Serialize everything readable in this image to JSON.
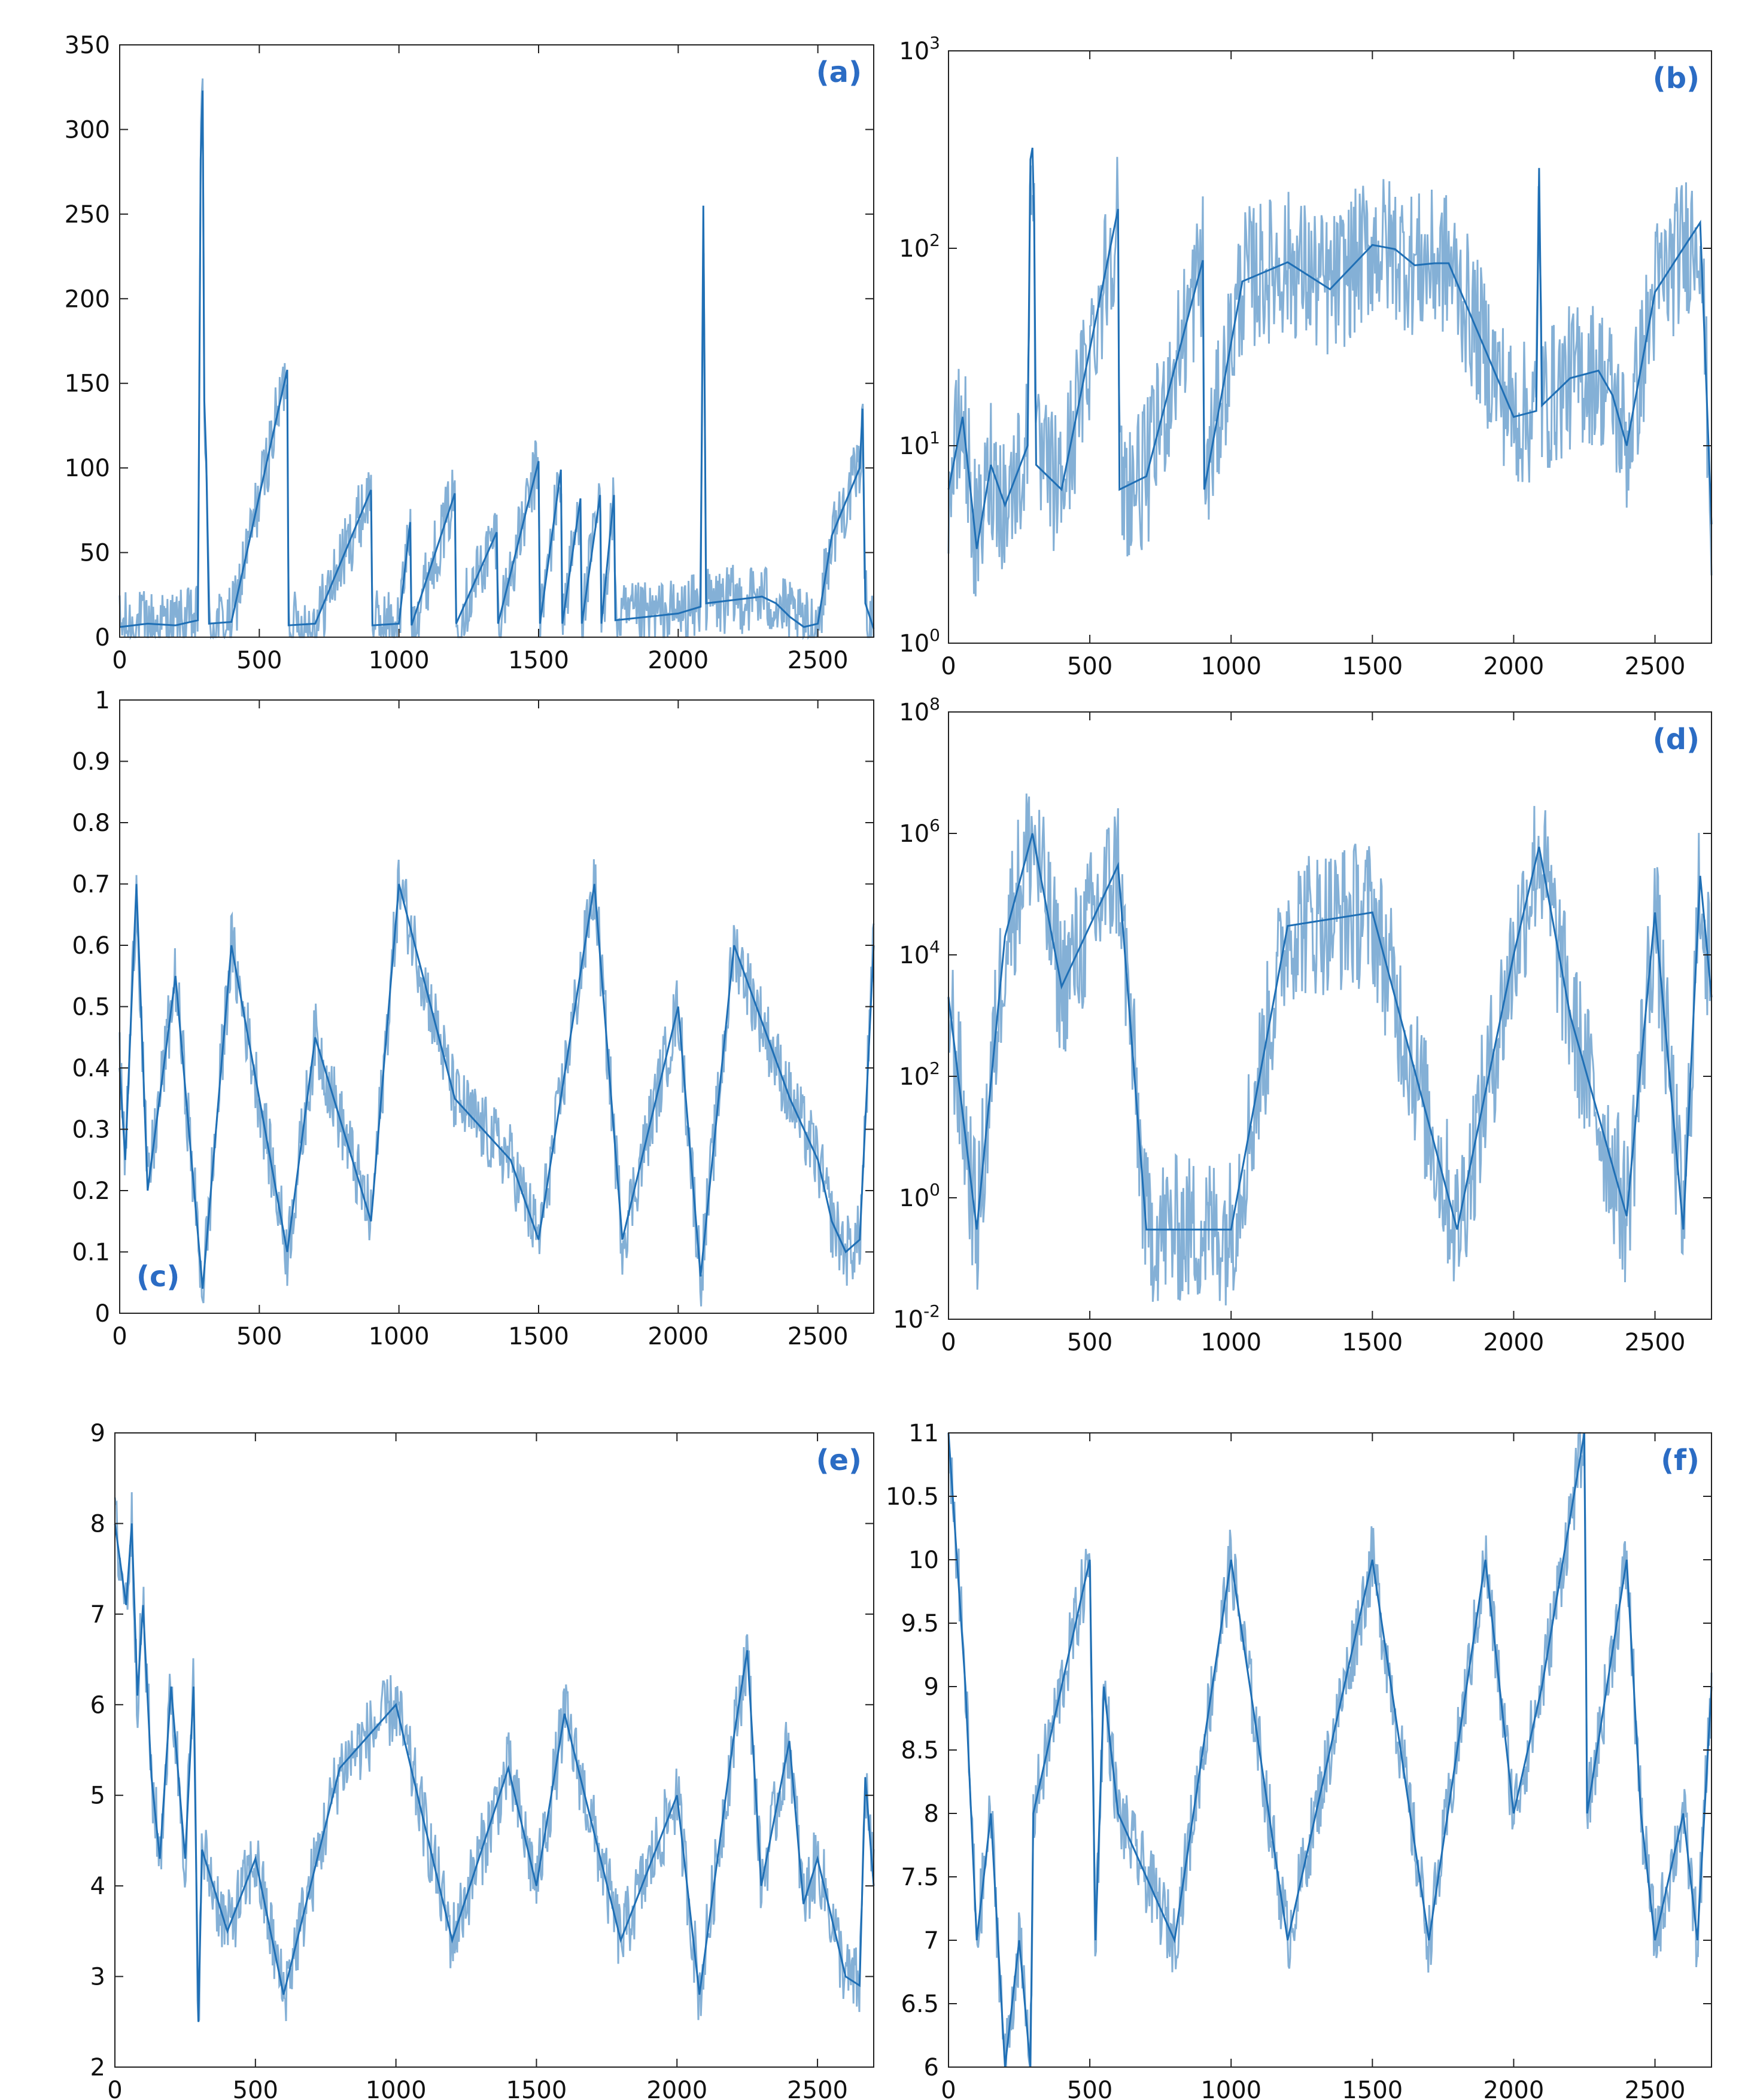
{
  "colors": {
    "series": "#1f6fb5",
    "axis": "#222222",
    "label": "#2b6cc4"
  },
  "chart_data": [
    {
      "id": "a",
      "type": "line",
      "panel_label": "(a)",
      "title": "",
      "xlabel": "",
      "ylabel": "",
      "xlim": [
        0,
        2700
      ],
      "ylim": [
        0,
        350
      ],
      "yscale": "linear",
      "xticks": [
        0,
        500,
        1000,
        1500,
        2000,
        2500
      ],
      "xtick_labels": [
        "0",
        "500",
        "1000",
        "1500",
        "2000",
        "2500"
      ],
      "yticks": [
        0,
        50,
        100,
        150,
        200,
        250,
        300,
        350
      ],
      "ytick_labels": [
        "0",
        "50",
        "100",
        "150",
        "200",
        "250",
        "300",
        "350"
      ],
      "grid": false,
      "legend": null,
      "series": [
        {
          "name": "",
          "x": [
            0,
            100,
            200,
            280,
            290,
            297,
            303,
            310,
            320,
            400,
            600,
            605,
            700,
            900,
            905,
            1000,
            1040,
            1045,
            1200,
            1205,
            1350,
            1355,
            1500,
            1505,
            1580,
            1585,
            1650,
            1655,
            1720,
            1725,
            1770,
            1775,
            2000,
            2080,
            2090,
            2100,
            2200,
            2300,
            2350,
            2400,
            2450,
            2500,
            2550,
            2600,
            2650,
            2660,
            2670,
            2700
          ],
          "y": [
            6,
            8,
            7,
            10,
            282,
            323,
            140,
            105,
            8,
            9,
            158,
            7,
            8,
            87,
            7,
            8,
            68,
            7,
            85,
            8,
            62,
            8,
            104,
            8,
            99,
            8,
            82,
            8,
            84,
            8,
            84,
            10,
            14,
            18,
            255,
            20,
            22,
            24,
            20,
            12,
            6,
            8,
            60,
            80,
            100,
            135,
            20,
            5
          ]
        }
      ]
    },
    {
      "id": "b",
      "type": "line",
      "panel_label": "(b)",
      "title": "",
      "xlabel": "",
      "ylabel": "",
      "xlim": [
        0,
        2700
      ],
      "ylim": [
        1,
        1000
      ],
      "yscale": "log",
      "xticks": [
        0,
        500,
        1000,
        1500,
        2000,
        2500
      ],
      "xtick_labels": [
        "0",
        "500",
        "1000",
        "1500",
        "2000",
        "2500"
      ],
      "yticks": [
        1,
        10,
        100,
        1000
      ],
      "ytick_labels": [
        {
          "base": "10",
          "exp": "0"
        },
        {
          "base": "10",
          "exp": "1"
        },
        {
          "base": "10",
          "exp": "2"
        },
        {
          "base": "10",
          "exp": "3"
        }
      ],
      "grid": false,
      "legend": null,
      "series": [
        {
          "name": "",
          "x": [
            0,
            50,
            100,
            150,
            200,
            280,
            290,
            297,
            303,
            310,
            400,
            600,
            605,
            700,
            900,
            905,
            1040,
            1200,
            1350,
            1500,
            1580,
            1650,
            1720,
            1770,
            2000,
            2080,
            2090,
            2100,
            2200,
            2300,
            2350,
            2400,
            2500,
            2600,
            2660,
            2700
          ],
          "y": [
            6,
            14,
            3,
            8,
            5,
            10,
            282,
            323,
            140,
            8,
            6,
            158,
            6,
            7,
            87,
            6,
            68,
            85,
            62,
            104,
            99,
            82,
            84,
            84,
            14,
            15,
            255,
            16,
            22,
            24,
            18,
            10,
            60,
            100,
            135,
            4
          ]
        }
      ]
    },
    {
      "id": "c",
      "type": "line",
      "panel_label": "(c)",
      "title": "",
      "xlabel": "",
      "ylabel": "",
      "xlim": [
        0,
        2700
      ],
      "ylim": [
        0,
        1
      ],
      "yscale": "linear",
      "xticks": [
        0,
        500,
        1000,
        1500,
        2000,
        2500
      ],
      "xtick_labels": [
        "0",
        "500",
        "1000",
        "1500",
        "2000",
        "2500"
      ],
      "yticks": [
        0,
        0.1,
        0.2,
        0.3,
        0.4,
        0.5,
        0.6,
        0.7,
        0.8,
        0.9,
        1
      ],
      "ytick_labels": [
        "0",
        "0.1",
        "0.2",
        "0.3",
        "0.4",
        "0.5",
        "0.6",
        "0.7",
        "0.8",
        "0.9",
        "1"
      ],
      "grid": false,
      "legend": null,
      "series": [
        {
          "name": "",
          "x": [
            0,
            20,
            60,
            100,
            200,
            297,
            310,
            400,
            600,
            700,
            900,
            1000,
            1200,
            1400,
            1500,
            1700,
            1800,
            2000,
            2080,
            2200,
            2400,
            2500,
            2550,
            2600,
            2650,
            2700
          ],
          "y": [
            0.4,
            0.25,
            0.7,
            0.2,
            0.55,
            0.04,
            0.11,
            0.6,
            0.1,
            0.45,
            0.15,
            0.7,
            0.35,
            0.25,
            0.12,
            0.7,
            0.12,
            0.5,
            0.06,
            0.6,
            0.35,
            0.25,
            0.15,
            0.1,
            0.12,
            0.6
          ]
        }
      ]
    },
    {
      "id": "d",
      "type": "line",
      "panel_label": "(d)",
      "title": "",
      "xlabel": "",
      "ylabel": "",
      "xlim": [
        0,
        2700
      ],
      "ylim": [
        0.01,
        100000000
      ],
      "yscale": "log",
      "xticks": [
        0,
        500,
        1000,
        1500,
        2000,
        2500
      ],
      "xtick_labels": [
        "0",
        "500",
        "1000",
        "1500",
        "2000",
        "2500"
      ],
      "yticks": [
        0.01,
        1,
        100,
        10000,
        1000000,
        100000000
      ],
      "ytick_labels": [
        {
          "base": "10",
          "exp": "-2"
        },
        {
          "base": "10",
          "exp": "0"
        },
        {
          "base": "10",
          "exp": "2"
        },
        {
          "base": "10",
          "exp": "4"
        },
        {
          "base": "10",
          "exp": "6"
        },
        {
          "base": "10",
          "exp": "8"
        }
      ],
      "grid": false,
      "legend": null,
      "series": [
        {
          "name": "",
          "x": [
            0,
            100,
            200,
            297,
            400,
            600,
            700,
            1000,
            1200,
            1500,
            1800,
            2000,
            2090,
            2200,
            2400,
            2500,
            2600,
            2660,
            2700
          ],
          "y": [
            2000,
            0.3,
            20000,
            1000000,
            3000,
            300000,
            0.3,
            0.3,
            30000,
            50000,
            0.3,
            10000,
            600000,
            1000,
            0.5,
            50000,
            0.3,
            200000,
            2000
          ]
        }
      ]
    },
    {
      "id": "e",
      "type": "line",
      "panel_label": "(e)",
      "title": "",
      "xlabel": "",
      "ylabel": "",
      "xlim": [
        0,
        2700
      ],
      "ylim": [
        2,
        9
      ],
      "yscale": "linear",
      "xticks": [
        0,
        500,
        1000,
        1500,
        2000,
        2500
      ],
      "xtick_labels": [
        "0",
        "500",
        "1000",
        "1500",
        "2000",
        "2500"
      ],
      "yticks": [
        2,
        3,
        4,
        5,
        6,
        7,
        8,
        9
      ],
      "ytick_labels": [
        "2",
        "3",
        "4",
        "5",
        "6",
        "7",
        "8",
        "9"
      ],
      "grid": false,
      "legend": null,
      "series": [
        {
          "name": "",
          "x": [
            0,
            40,
            60,
            80,
            100,
            130,
            160,
            200,
            250,
            280,
            297,
            310,
            400,
            500,
            600,
            800,
            1000,
            1200,
            1400,
            1500,
            1600,
            1800,
            2000,
            2080,
            2200,
            2250,
            2300,
            2400,
            2450,
            2500,
            2600,
            2650,
            2670,
            2700
          ],
          "y": [
            8,
            7.1,
            8,
            6.1,
            7.1,
            5.2,
            4.3,
            6.2,
            4.3,
            6.2,
            2.5,
            4.4,
            3.5,
            4.3,
            2.8,
            5.3,
            6,
            3.4,
            5.3,
            4,
            5.9,
            3.4,
            5,
            2.8,
            5.6,
            6.6,
            4,
            5.6,
            3.8,
            4.3,
            3,
            2.9,
            5.2,
            4
          ]
        }
      ]
    },
    {
      "id": "f",
      "type": "line",
      "panel_label": "(f)",
      "title": "",
      "xlabel": "",
      "ylabel": "",
      "xlim": [
        0,
        2700
      ],
      "ylim": [
        6,
        11
      ],
      "yscale": "linear",
      "xticks": [
        0,
        500,
        1000,
        1500,
        2000,
        2500
      ],
      "xtick_labels": [
        "0",
        "500",
        "1000",
        "1500",
        "2000",
        "2500"
      ],
      "yticks": [
        6,
        6.5,
        7,
        7.5,
        8,
        8.5,
        9,
        9.5,
        10,
        10.5,
        11
      ],
      "ytick_labels": [
        "6",
        "6.5",
        "7",
        "7.5",
        "8",
        "8.5",
        "9",
        "9.5",
        "10",
        "10.5",
        "11"
      ],
      "grid": false,
      "legend": null,
      "series": [
        {
          "name": "",
          "x": [
            0,
            30,
            60,
            100,
            150,
            200,
            250,
            290,
            300,
            400,
            500,
            520,
            550,
            600,
            800,
            1000,
            1200,
            1400,
            1500,
            1700,
            1900,
            2000,
            2100,
            2250,
            2260,
            2400,
            2450,
            2500,
            2600,
            2650,
            2700
          ],
          "y": [
            11,
            10,
            9,
            7,
            8,
            6,
            7,
            6,
            8,
            9,
            10,
            7,
            9,
            8,
            7,
            10,
            7,
            9,
            10,
            7,
            10,
            8,
            9,
            11,
            8,
            10,
            8,
            7,
            8,
            7,
            9
          ]
        }
      ]
    }
  ]
}
